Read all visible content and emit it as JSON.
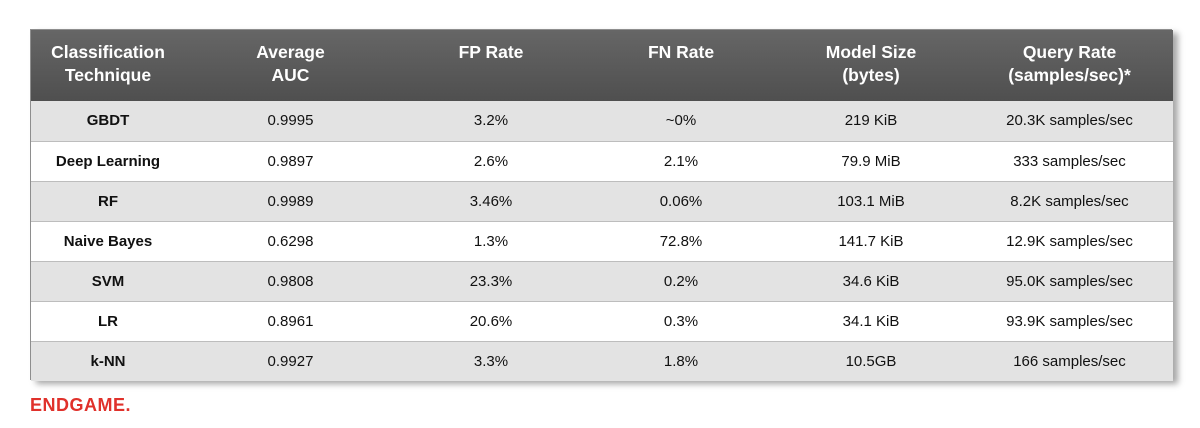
{
  "table": {
    "headers": [
      {
        "line1": "Classification",
        "line2": "Technique"
      },
      {
        "line1": "Average",
        "line2": "AUC"
      },
      {
        "line1": "FP Rate",
        "line2": ""
      },
      {
        "line1": "FN Rate",
        "line2": ""
      },
      {
        "line1": "Model Size",
        "line2": "(bytes)"
      },
      {
        "line1": "Query Rate",
        "line2": "(samples/sec)*"
      }
    ],
    "rows": [
      [
        "GBDT",
        "0.9995",
        "3.2%",
        "~0%",
        "219 KiB",
        "20.3K samples/sec"
      ],
      [
        "Deep Learning",
        "0.9897",
        "2.6%",
        "2.1%",
        "79.9 MiB",
        "333 samples/sec"
      ],
      [
        "RF",
        "0.9989",
        "3.46%",
        "0.06%",
        "103.1 MiB",
        "8.2K samples/sec"
      ],
      [
        "Naive Bayes",
        "0.6298",
        "1.3%",
        "72.8%",
        "141.7 KiB",
        "12.9K samples/sec"
      ],
      [
        "SVM",
        "0.9808",
        "23.3%",
        "0.2%",
        "34.6 KiB",
        "95.0K samples/sec"
      ],
      [
        "LR",
        "0.8961",
        "20.6%",
        "0.3%",
        "34.1 KiB",
        "93.9K samples/sec"
      ],
      [
        "k-NN",
        "0.9927",
        "3.3%",
        "1.8%",
        "10.5GB",
        "166 samples/sec"
      ]
    ]
  },
  "footer": {
    "logo_text": "ENDGAME."
  },
  "colors": {
    "header_bg": "#5a5a5a",
    "header_text": "#ffffff",
    "row_odd_bg": "#e3e3e3",
    "row_even_bg": "#ffffff",
    "logo": "#e0312b"
  }
}
